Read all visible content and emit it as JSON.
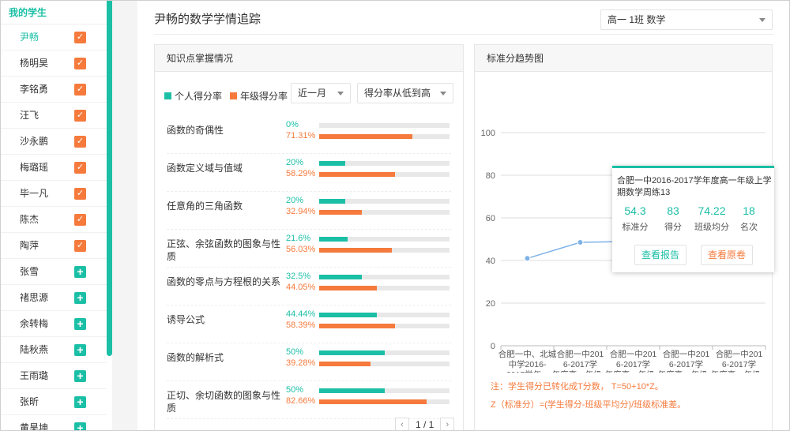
{
  "sidebar": {
    "title": "我的学生",
    "students": [
      {
        "name": "尹畅",
        "state": "checked",
        "active": true
      },
      {
        "name": "杨明昊",
        "state": "checked"
      },
      {
        "name": "李铭勇",
        "state": "checked"
      },
      {
        "name": "汪飞",
        "state": "checked"
      },
      {
        "name": "沙永鹏",
        "state": "checked"
      },
      {
        "name": "梅璐瑶",
        "state": "checked"
      },
      {
        "name": "毕一凡",
        "state": "checked"
      },
      {
        "name": "陈杰",
        "state": "checked"
      },
      {
        "name": "陶萍",
        "state": "checked"
      },
      {
        "name": "张雪",
        "state": "add"
      },
      {
        "name": "禇思源",
        "state": "add"
      },
      {
        "name": "余转梅",
        "state": "add"
      },
      {
        "name": "陆秋燕",
        "state": "add"
      },
      {
        "name": "王雨璐",
        "state": "add"
      },
      {
        "name": "张昕",
        "state": "add"
      },
      {
        "name": "黄昊坤",
        "state": "add"
      }
    ],
    "check_glyph": "✓",
    "add_glyph": "+"
  },
  "header": {
    "title": "尹畅的数学学情追踪",
    "class_select": "高一 1班 数学"
  },
  "knowledge_panel": {
    "title": "知识点掌握情况",
    "legend_personal": "个人得分率",
    "legend_grade": "年级得分率",
    "period_select": "近一月",
    "sort_select": "得分率从低到高",
    "colors": {
      "personal": "#1bbfa6",
      "grade": "#f57a3c"
    },
    "items": [
      {
        "name": "函数的奇偶性",
        "personal": "0%",
        "personal_value": 0,
        "grade": "71.31%",
        "grade_value": 71.31
      },
      {
        "name": "函数定义域与值域",
        "personal": "20%",
        "personal_value": 20,
        "grade": "58.29%",
        "grade_value": 58.29
      },
      {
        "name": "任意角的三角函数",
        "personal": "20%",
        "personal_value": 20,
        "grade": "32.94%",
        "grade_value": 32.94
      },
      {
        "name": "正弦、余弦函数的图象与性质",
        "personal": "21.6%",
        "personal_value": 21.6,
        "grade": "56.03%",
        "grade_value": 56.03
      },
      {
        "name": "函数的零点与方程根的关系",
        "personal": "32.5%",
        "personal_value": 32.5,
        "grade": "44.05%",
        "grade_value": 44.05
      },
      {
        "name": "诱导公式",
        "personal": "44.44%",
        "personal_value": 44.44,
        "grade": "58.39%",
        "grade_value": 58.39
      },
      {
        "name": "函数的解析式",
        "personal": "50%",
        "personal_value": 50,
        "grade": "39.28%",
        "grade_value": 39.28
      },
      {
        "name": "正切、余切函数的图象与性质",
        "personal": "50%",
        "personal_value": 50,
        "grade": "82.66%",
        "grade_value": 82.66
      }
    ],
    "pager": {
      "label": "1 / 1",
      "prev": "‹",
      "next": "›"
    }
  },
  "trend_panel": {
    "title": "标准分趋势图",
    "tooltip": {
      "title": "合肥一中2016-2017学年度高一年级上学期数学周练13",
      "stats": [
        {
          "value": "54.3",
          "label": "标准分"
        },
        {
          "value": "83",
          "label": "得分"
        },
        {
          "value": "74.22",
          "label": "班级均分"
        },
        {
          "value": "18",
          "label": "名次"
        }
      ],
      "view_report": "查看报告",
      "view_paper": "查看原卷"
    },
    "note1": "注：学生得分已转化成T分数， T=50+10*Z。",
    "note2": "Z（标准分）=(学生得分-班级平均分)/班级标准差。"
  },
  "chart_data": {
    "type": "line",
    "ylim": [
      0,
      100
    ],
    "yticks": [
      0,
      20,
      40,
      60,
      80,
      100
    ],
    "grid": true,
    "categories": [
      [
        "合肥一中、北城",
        "中学2016-",
        "2017学年..."
      ],
      [
        "合肥一中201",
        "6-2017学",
        "年度高一年级..."
      ],
      [
        "合肥一中201",
        "6-2017学",
        "年度高一年级..."
      ],
      [
        "合肥一中201",
        "6-2017学",
        "年度高一年级..."
      ],
      [
        "合肥一中201",
        "6-2017学",
        "年度高一年级..."
      ]
    ],
    "values": [
      41,
      48.5,
      49,
      null,
      null
    ],
    "line_color": "#7eb3e8"
  }
}
